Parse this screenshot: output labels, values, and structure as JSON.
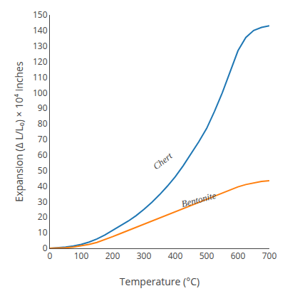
{
  "chart_data": {
    "type": "line",
    "xlabel": "Temperature (°C)",
    "ylabel": "Expansion (Δ L/L₀) × 10⁴ inches",
    "x": [
      0,
      25,
      50,
      75,
      100,
      125,
      150,
      175,
      200,
      225,
      250,
      275,
      300,
      325,
      350,
      375,
      400,
      425,
      450,
      475,
      500,
      525,
      550,
      575,
      600,
      625,
      650,
      675,
      700
    ],
    "series": [
      {
        "name": "Chert",
        "values": [
          0,
          0.3,
          0.8,
          1.5,
          2.5,
          4.0,
          6.0,
          8.5,
          11.5,
          14.5,
          17.5,
          21.0,
          25.0,
          29.5,
          34.5,
          40.0,
          46.0,
          53.0,
          60.5,
          68.5,
          77.0,
          88.0,
          100.0,
          114.0,
          127.0,
          135.5,
          140.0,
          142.0,
          143.0
        ]
      },
      {
        "name": "Bentonite",
        "values": [
          0,
          0.1,
          0.3,
          0.8,
          1.5,
          2.5,
          3.8,
          5.5,
          7.5,
          9.5,
          11.5,
          13.5,
          15.5,
          17.5,
          19.5,
          21.5,
          23.5,
          25.5,
          27.5,
          29.5,
          31.5,
          33.5,
          35.5,
          37.5,
          39.5,
          41.0,
          42.0,
          43.0,
          43.5
        ]
      }
    ],
    "annotations": [
      {
        "text": "Chert",
        "x": 315,
        "y": 48
      },
      {
        "text": "Bentonite",
        "x": 410,
        "y": 24
      }
    ],
    "xlim": [
      0,
      700
    ],
    "ylim": [
      0,
      150
    ],
    "xticks": [
      0,
      100,
      200,
      300,
      400,
      500,
      600,
      700
    ],
    "yticks": [
      0,
      10,
      20,
      30,
      40,
      50,
      60,
      70,
      80,
      90,
      100,
      110,
      120,
      130,
      140,
      150
    ],
    "grid": false
  }
}
